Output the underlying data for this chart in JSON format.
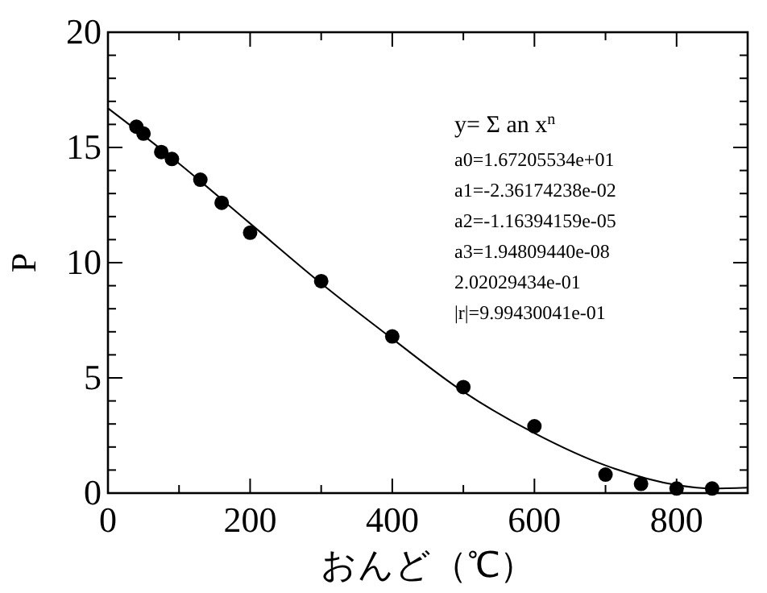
{
  "chart_data": {
    "type": "scatter",
    "xlabel": "おんど（℃）",
    "ylabel": "P",
    "xlim": [
      0,
      900
    ],
    "ylim": [
      0,
      20
    ],
    "xticks": [
      0,
      {
        "value": 100,
        "label": null
      },
      200,
      {
        "value": 300,
        "label": null
      },
      400,
      {
        "value": 500,
        "label": null
      },
      600,
      {
        "value": 700,
        "label": null
      },
      800
    ],
    "yticks": [
      0,
      {
        "value": 1,
        "label": null
      },
      {
        "value": 2,
        "label": null
      },
      {
        "value": 3,
        "label": null
      },
      {
        "value": 4,
        "label": null
      },
      5,
      {
        "value": 6,
        "label": null
      },
      {
        "value": 7,
        "label": null
      },
      {
        "value": 8,
        "label": null
      },
      {
        "value": 9,
        "label": null
      },
      10,
      {
        "value": 11,
        "label": null
      },
      {
        "value": 12,
        "label": null
      },
      {
        "value": 13,
        "label": null
      },
      {
        "value": 14,
        "label": null
      },
      15,
      {
        "value": 16,
        "label": null
      },
      {
        "value": 17,
        "label": null
      },
      {
        "value": 18,
        "label": null
      },
      {
        "value": 19,
        "label": null
      },
      20
    ],
    "grid": false,
    "marker": "circle",
    "series": [
      {
        "color": "#000000",
        "x": [
          40,
          50,
          75,
          90,
          130,
          160,
          200,
          300,
          400,
          500,
          600,
          700,
          750,
          800,
          850
        ],
        "values": [
          15.9,
          15.6,
          14.8,
          14.5,
          13.6,
          12.6,
          11.3,
          9.2,
          6.8,
          4.6,
          2.9,
          0.8,
          0.4,
          0.2,
          0.2
        ]
      },
      {
        "type": "line",
        "marker": "none",
        "color": "#000000",
        "x": [
          0,
          100,
          200,
          300,
          400,
          500,
          600,
          700,
          800,
          850,
          900
        ],
        "values": [
          16.7,
          14.3,
          11.7,
          9.1,
          6.7,
          4.4,
          2.6,
          1.2,
          0.35,
          0.2,
          0.24
        ]
      }
    ],
    "annotations": [
      "y= Σ an x$^{n}$",
      "a0=1.67205534e+01",
      "a1=-2.36174238e-02",
      "a2=-1.16394159e-05",
      "a3=1.94809440e-08",
      "2.02029434e-01",
      "|r|=9.99430041e-01"
    ]
  }
}
